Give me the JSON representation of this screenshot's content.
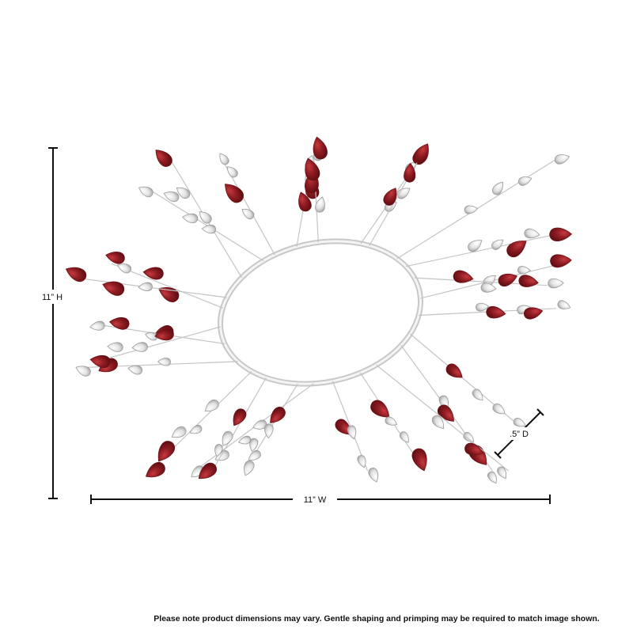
{
  "dimensions": {
    "height": "11” H",
    "width": "11” W",
    "depth": ".5” D"
  },
  "note": "Please note product dimensions may vary.  Gentle shaping and primping may be required to match image shown."
}
